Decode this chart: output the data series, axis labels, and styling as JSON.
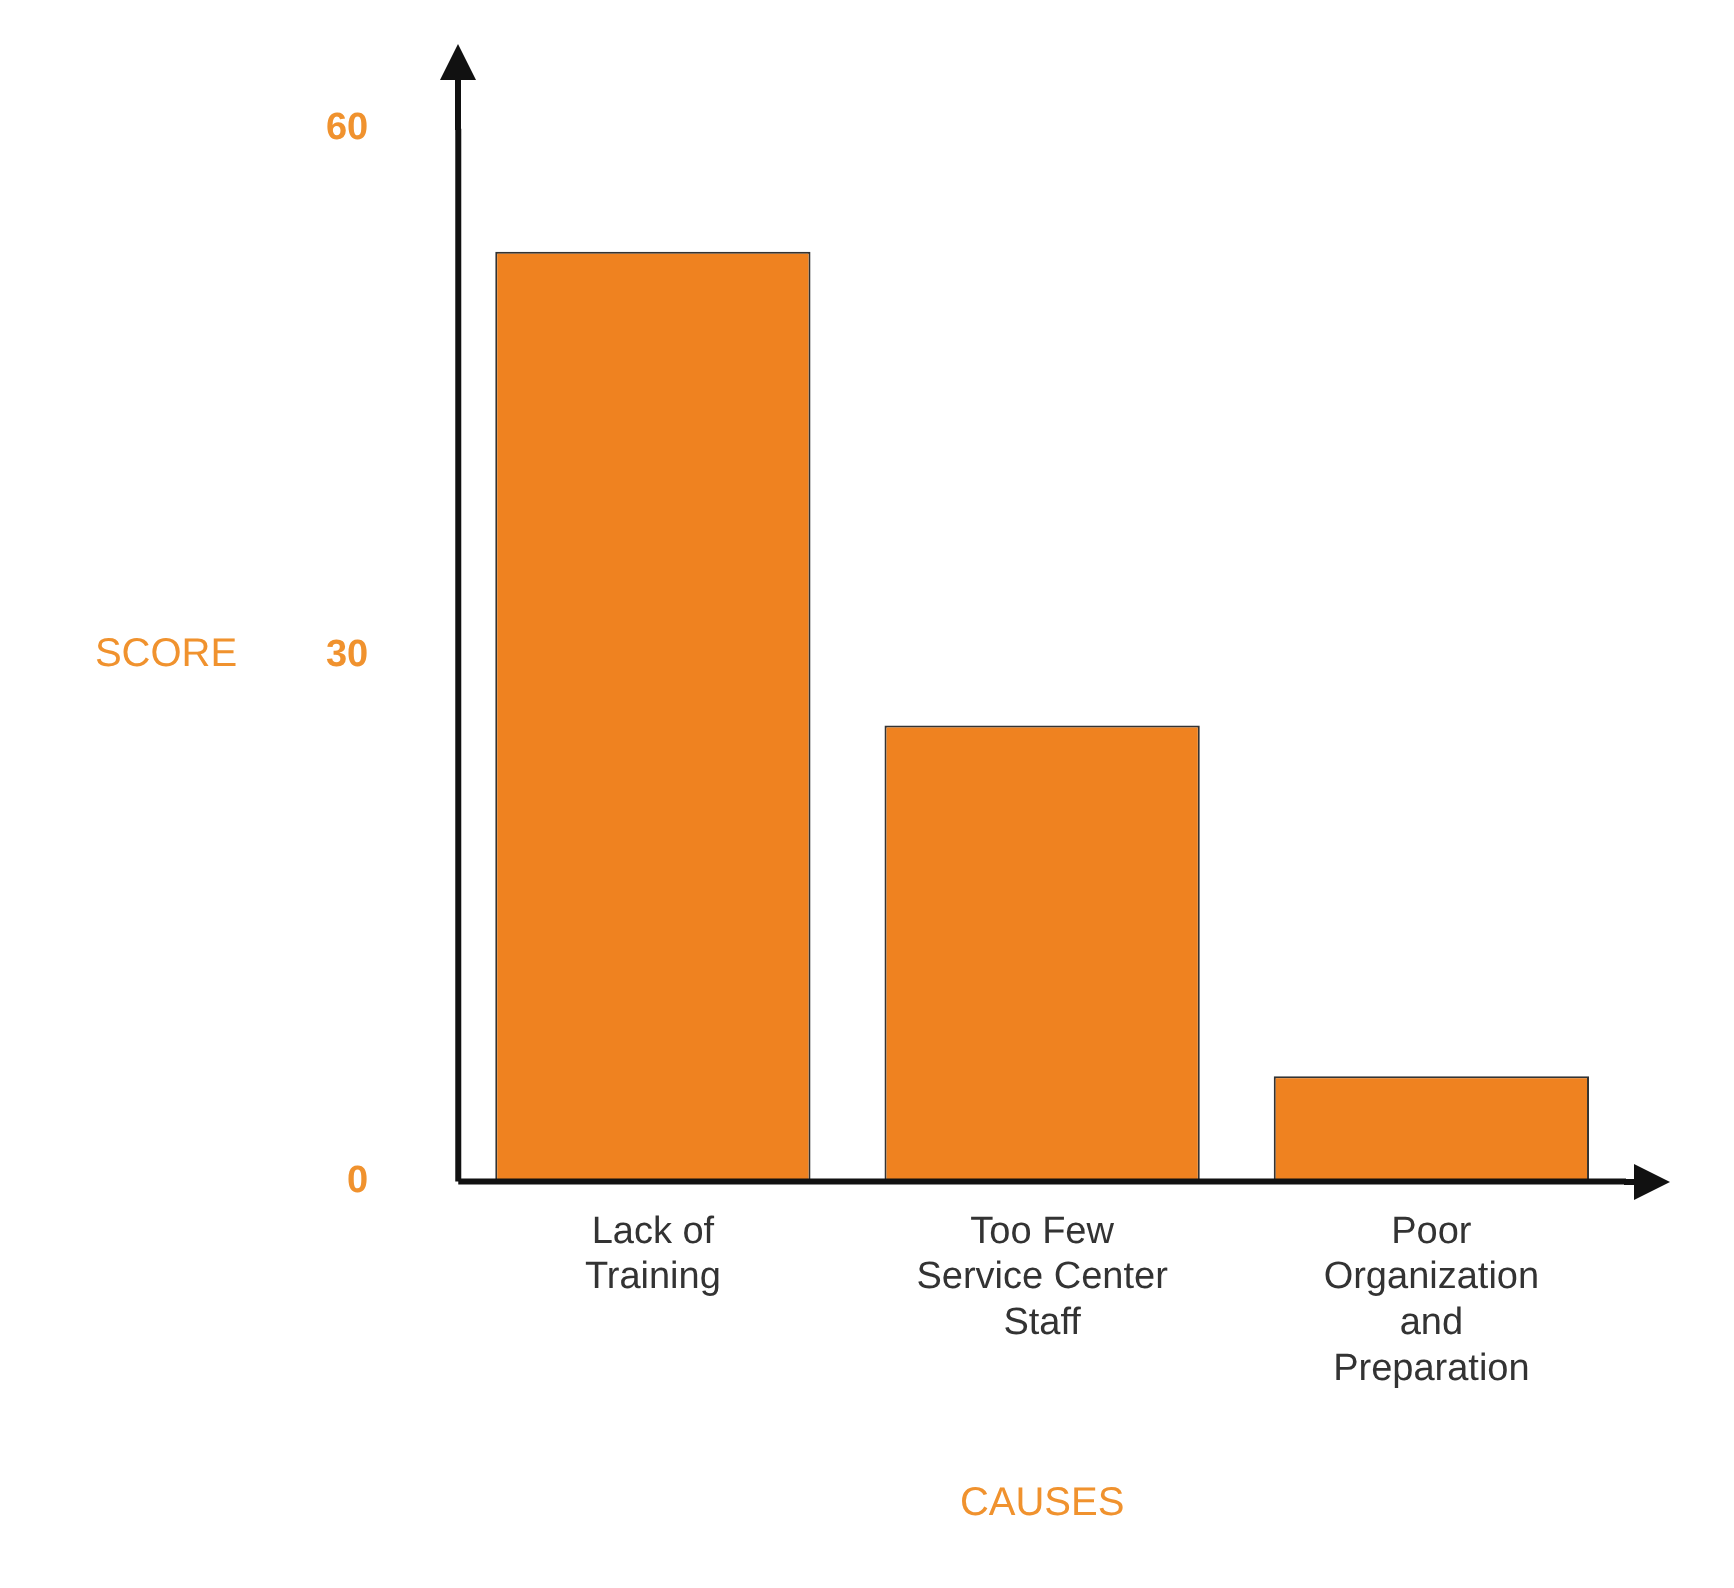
{
  "chart_data": {
    "type": "bar",
    "categories": [
      "Lack of Training",
      "Too Few Service Center Staff",
      "Poor Organization and Preparation"
    ],
    "values": [
      53,
      26,
      6
    ],
    "color": "#ef8220",
    "xlabel": "CAUSES",
    "ylabel": "SCORE",
    "ylim": [
      0,
      60
    ],
    "yticks": [
      0,
      30,
      60
    ],
    "grid": false,
    "legend": false
  }
}
